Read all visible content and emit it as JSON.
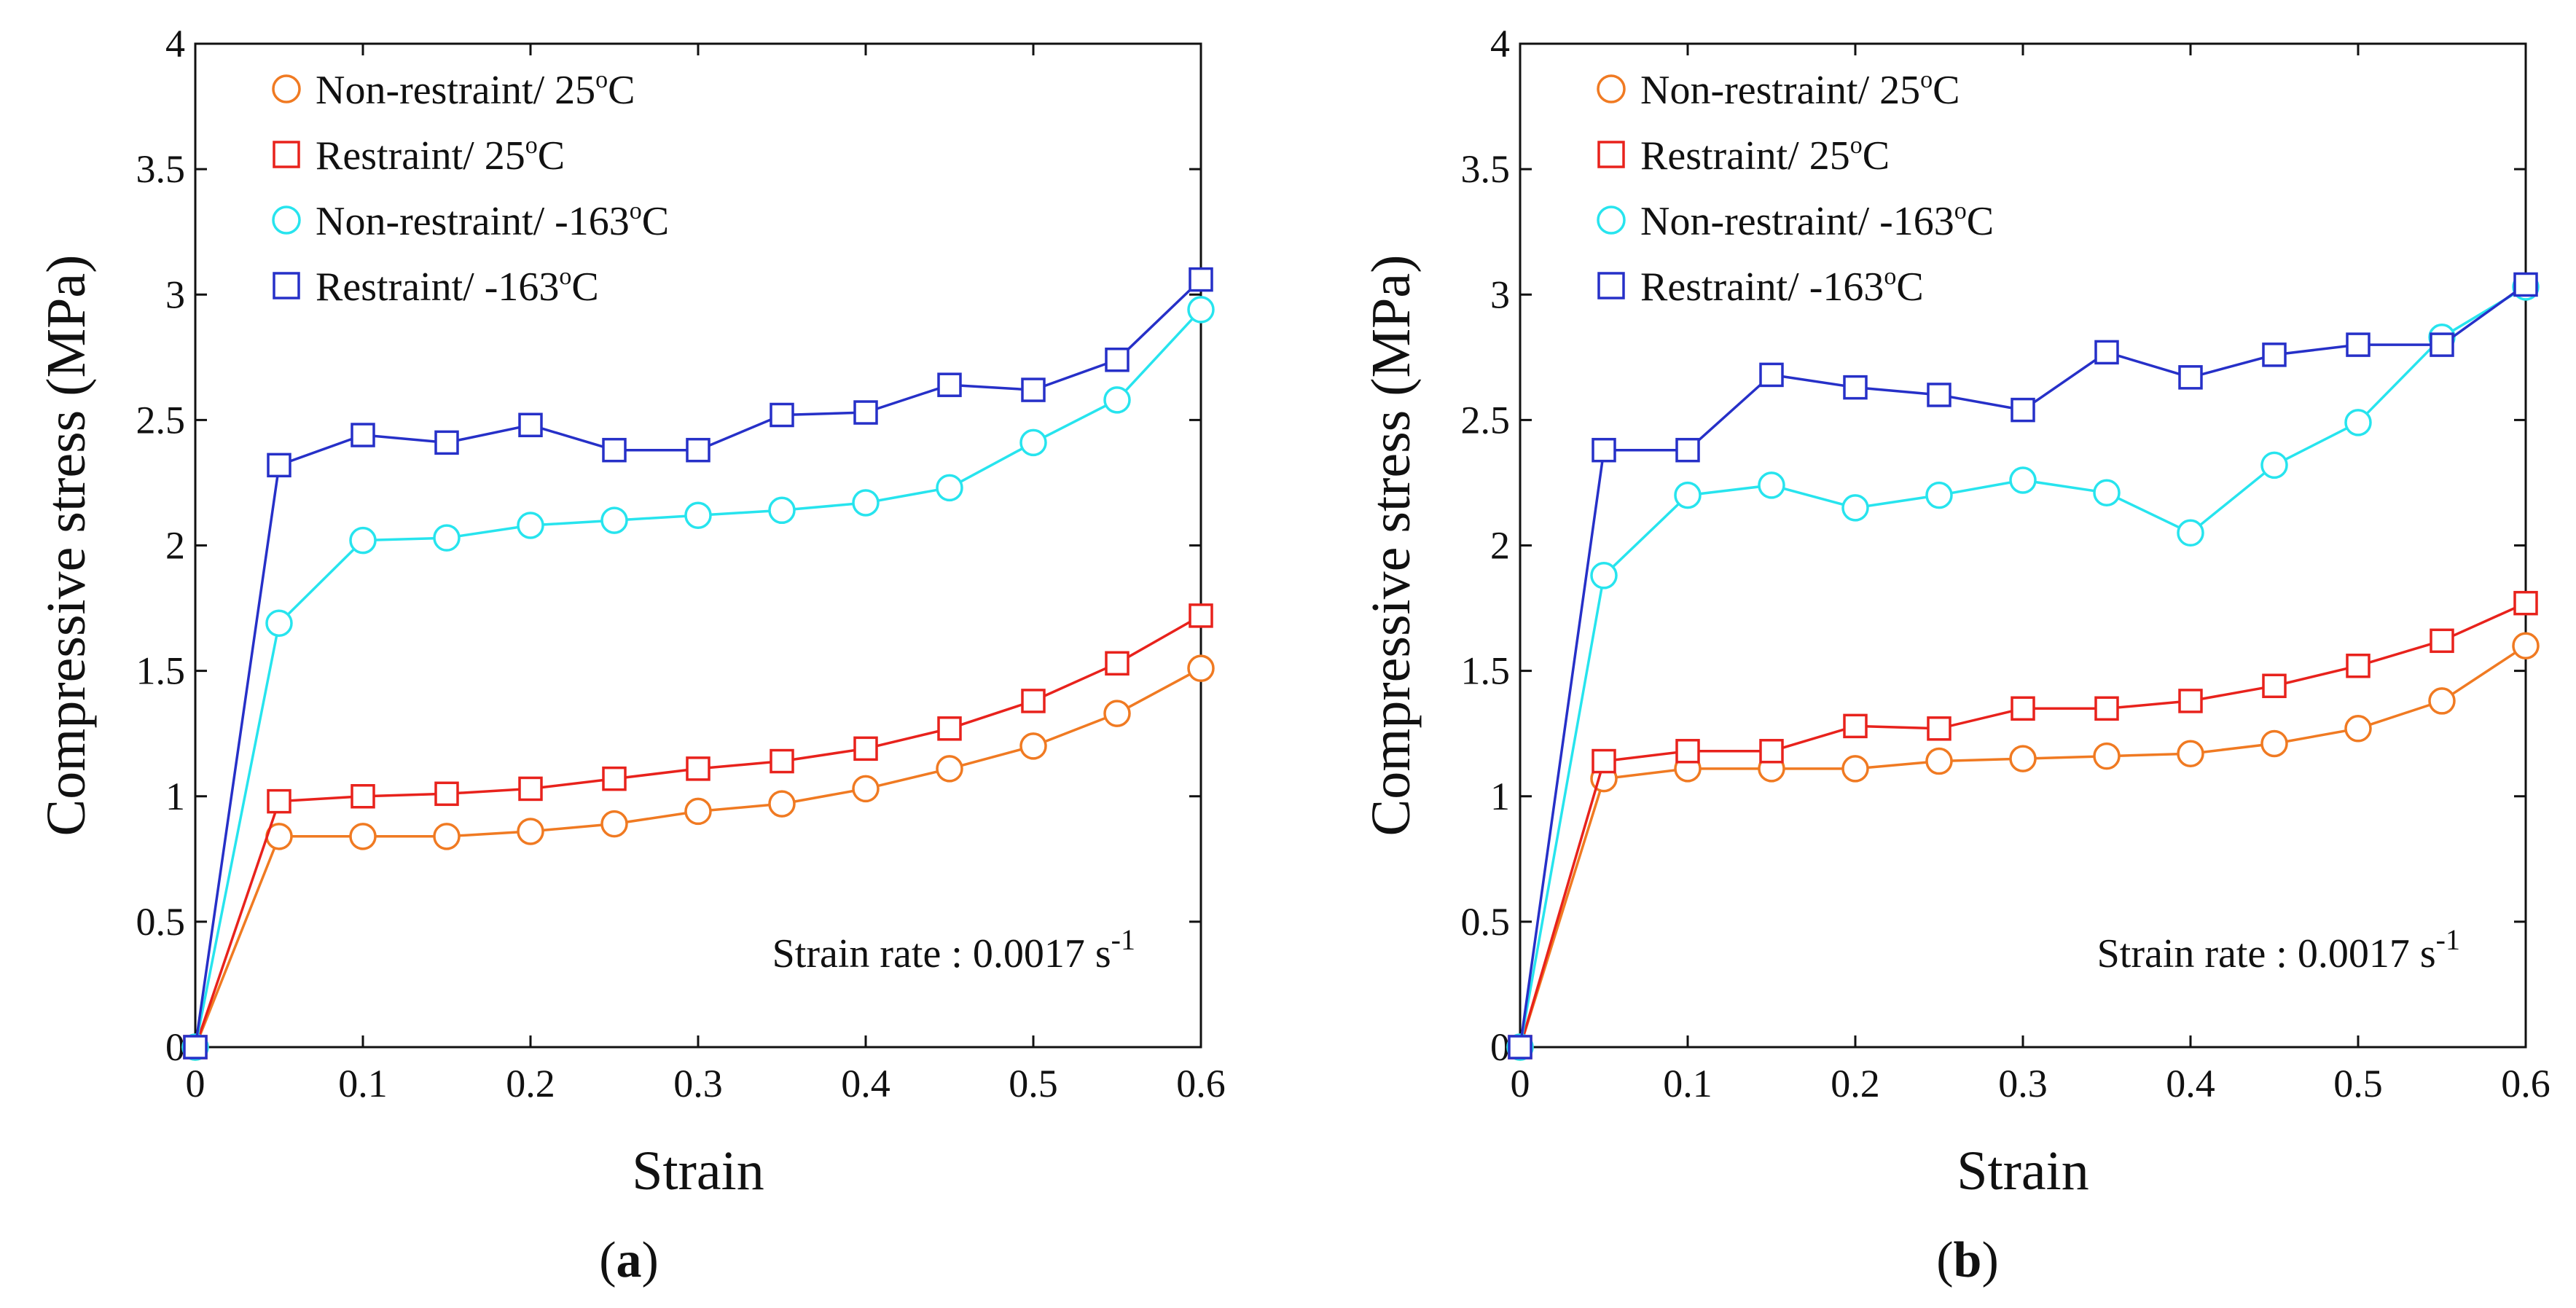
{
  "figure": {
    "panel_count": 2
  },
  "chart_data": [
    {
      "type": "line",
      "panel_label": "(a)",
      "panel_letter": "a",
      "xlabel": "Strain",
      "ylabel": "Compressive stress (MPa)",
      "xlim": [
        0,
        0.6
      ],
      "ylim": [
        0,
        4
      ],
      "xticks": [
        0,
        0.1,
        0.2,
        0.3,
        0.4,
        0.5,
        0.6
      ],
      "xtick_labels": [
        "0",
        "0.1",
        "0.2",
        "0.3",
        "0.4",
        "0.5",
        "0.6"
      ],
      "yticks": [
        0,
        0.5,
        1,
        1.5,
        2,
        2.5,
        3,
        3.5,
        4
      ],
      "ytick_labels": [
        "0",
        "0.5",
        "1",
        "1.5",
        "2",
        "2.5",
        "3",
        "3.5",
        "4"
      ],
      "grid": false,
      "legend_position": "top-left",
      "annotation": {
        "text": "Strain rate : 0.0017 s",
        "superscript": "-1",
        "position": "bottom-right"
      },
      "series": [
        {
          "name": "Non-restraint/ 25°C",
          "label_main": "Non-restraint/ 25",
          "label_sup": "o",
          "label_unit": "C",
          "color": "#f07a22",
          "marker": "circle",
          "x": [
            0,
            0.05,
            0.1,
            0.15,
            0.2,
            0.25,
            0.3,
            0.35,
            0.4,
            0.45,
            0.5,
            0.55,
            0.6
          ],
          "y": [
            0,
            0.84,
            0.84,
            0.84,
            0.86,
            0.89,
            0.94,
            0.97,
            1.03,
            1.11,
            1.2,
            1.33,
            1.51
          ]
        },
        {
          "name": "Restraint/ 25°C",
          "label_main": "Restraint/ 25",
          "label_sup": "o",
          "label_unit": "C",
          "color": "#e8221c",
          "marker": "square",
          "x": [
            0,
            0.05,
            0.1,
            0.15,
            0.2,
            0.25,
            0.3,
            0.35,
            0.4,
            0.45,
            0.5,
            0.55,
            0.6
          ],
          "y": [
            0,
            0.98,
            1.0,
            1.01,
            1.03,
            1.07,
            1.11,
            1.14,
            1.19,
            1.27,
            1.38,
            1.53,
            1.72
          ]
        },
        {
          "name": "Non-restraint/ -163°C",
          "label_main": "Non-restraint/ -163",
          "label_sup": "o",
          "label_unit": "C",
          "color": "#27e4ee",
          "marker": "circle",
          "x": [
            0,
            0.05,
            0.1,
            0.15,
            0.2,
            0.25,
            0.3,
            0.35,
            0.4,
            0.45,
            0.5,
            0.55,
            0.6
          ],
          "y": [
            0,
            1.69,
            2.02,
            2.03,
            2.08,
            2.1,
            2.12,
            2.14,
            2.17,
            2.23,
            2.41,
            2.58,
            2.94
          ]
        },
        {
          "name": "Restraint/ -163°C",
          "label_main": "Restraint/ -163",
          "label_sup": "o",
          "label_unit": "C",
          "color": "#2630c8",
          "marker": "square",
          "x": [
            0,
            0.05,
            0.1,
            0.15,
            0.2,
            0.25,
            0.3,
            0.35,
            0.4,
            0.45,
            0.5,
            0.55,
            0.6
          ],
          "y": [
            0,
            2.32,
            2.44,
            2.41,
            2.48,
            2.38,
            2.38,
            2.52,
            2.53,
            2.64,
            2.62,
            2.74,
            3.06
          ]
        }
      ]
    },
    {
      "type": "line",
      "panel_label": "(b)",
      "panel_letter": "b",
      "xlabel": "Strain",
      "ylabel": "Compressive stress (MPa)",
      "xlim": [
        0,
        0.6
      ],
      "ylim": [
        0,
        4
      ],
      "xticks": [
        0,
        0.1,
        0.2,
        0.3,
        0.4,
        0.5,
        0.6
      ],
      "xtick_labels": [
        "0",
        "0.1",
        "0.2",
        "0.3",
        "0.4",
        "0.5",
        "0.6"
      ],
      "yticks": [
        0,
        0.5,
        1,
        1.5,
        2,
        2.5,
        3,
        3.5,
        4
      ],
      "ytick_labels": [
        "0",
        "0.5",
        "1",
        "1.5",
        "2",
        "2.5",
        "3",
        "3.5",
        "4"
      ],
      "grid": false,
      "legend_position": "top-left",
      "annotation": {
        "text": "Strain rate : 0.0017 s",
        "superscript": "-1",
        "position": "bottom-right"
      },
      "series": [
        {
          "name": "Non-restraint/ 25°C",
          "label_main": "Non-restraint/ 25",
          "label_sup": "o",
          "label_unit": "C",
          "color": "#f07a22",
          "marker": "circle",
          "x": [
            0,
            0.05,
            0.1,
            0.15,
            0.2,
            0.25,
            0.3,
            0.35,
            0.4,
            0.45,
            0.5,
            0.55,
            0.6
          ],
          "y": [
            0,
            1.07,
            1.11,
            1.11,
            1.11,
            1.14,
            1.15,
            1.16,
            1.17,
            1.21,
            1.27,
            1.38,
            1.6
          ]
        },
        {
          "name": "Restraint/ 25°C",
          "label_main": "Restraint/ 25",
          "label_sup": "o",
          "label_unit": "C",
          "color": "#e8221c",
          "marker": "square",
          "x": [
            0,
            0.05,
            0.1,
            0.15,
            0.2,
            0.25,
            0.3,
            0.35,
            0.4,
            0.45,
            0.5,
            0.55,
            0.6
          ],
          "y": [
            0,
            1.14,
            1.18,
            1.18,
            1.28,
            1.27,
            1.35,
            1.35,
            1.38,
            1.44,
            1.52,
            1.62,
            1.77
          ]
        },
        {
          "name": "Non-restraint/ -163°C",
          "label_main": "Non-restraint/ -163",
          "label_sup": "o",
          "label_unit": "C",
          "color": "#27e4ee",
          "marker": "circle",
          "x": [
            0,
            0.05,
            0.1,
            0.15,
            0.2,
            0.25,
            0.3,
            0.35,
            0.4,
            0.45,
            0.5,
            0.55,
            0.6
          ],
          "y": [
            0,
            1.88,
            2.2,
            2.24,
            2.15,
            2.2,
            2.26,
            2.21,
            2.05,
            2.32,
            2.49,
            2.83,
            3.03
          ]
        },
        {
          "name": "Restraint/ -163°C",
          "label_main": "Restraint/ -163",
          "label_sup": "o",
          "label_unit": "C",
          "color": "#2630c8",
          "marker": "square",
          "x": [
            0,
            0.05,
            0.1,
            0.15,
            0.2,
            0.25,
            0.3,
            0.35,
            0.4,
            0.45,
            0.5,
            0.55,
            0.6
          ],
          "y": [
            0,
            2.38,
            2.38,
            2.68,
            2.63,
            2.6,
            2.54,
            2.77,
            2.67,
            2.76,
            2.8,
            2.8,
            3.04
          ]
        }
      ]
    }
  ]
}
